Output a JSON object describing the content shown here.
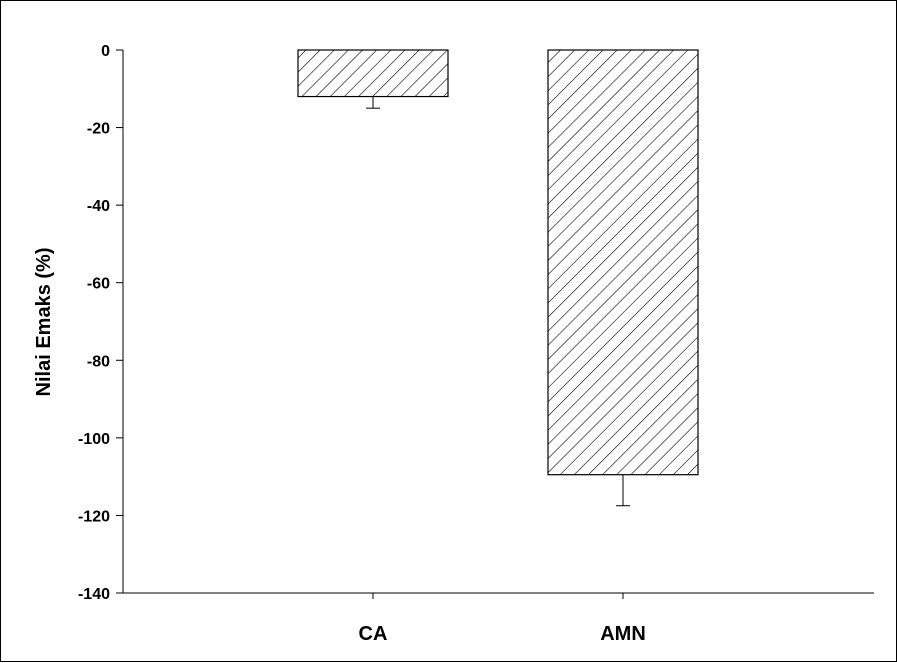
{
  "chart_data": {
    "type": "bar",
    "title": "",
    "xlabel": "",
    "ylabel": "Nilai Emaks (%)",
    "categories": [
      "CA",
      "AMN"
    ],
    "values": [
      -12,
      -109.5
    ],
    "errors": [
      3,
      8
    ],
    "ylim": [
      -140,
      0
    ],
    "yticks": [
      0,
      -20,
      -40,
      -60,
      -80,
      -100,
      -120,
      -140
    ],
    "grid": false,
    "legend": "none",
    "bar_fill": "diagonal-hatch",
    "colors": {
      "bar_fill": "#ffffff",
      "bar_stroke": "#000000",
      "hatch": "#000000",
      "axis": "#000000"
    }
  }
}
